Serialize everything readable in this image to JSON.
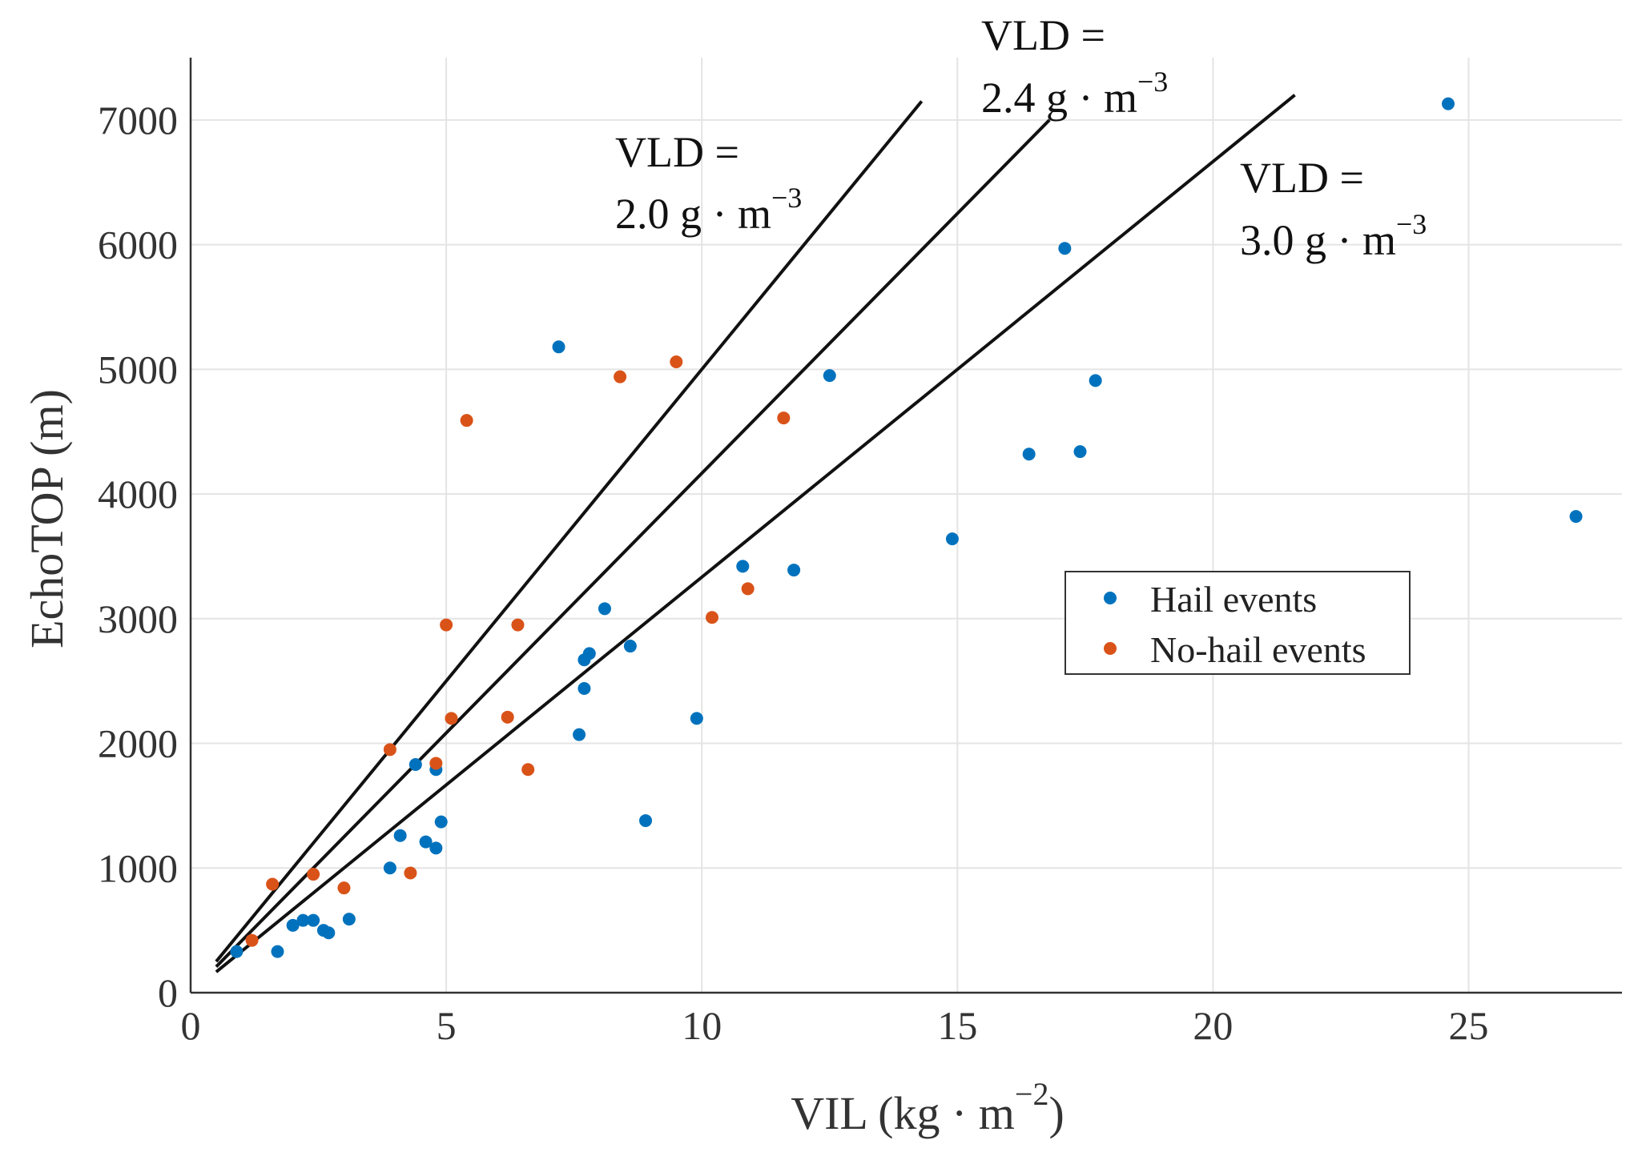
{
  "chart_data": {
    "type": "scatter",
    "xlabel": "VIL (kg · m",
    "xlabel_exponent": "−2",
    "xlabel_close": ")",
    "ylabel": "EchoTOP (m)",
    "xlim": [
      0,
      28
    ],
    "ylim": [
      0,
      7500
    ],
    "grid": true,
    "legend_position": "center-right",
    "x_ticks": [
      0,
      5,
      10,
      15,
      20,
      25
    ],
    "y_ticks": [
      0,
      1000,
      2000,
      3000,
      4000,
      5000,
      6000,
      7000
    ],
    "colors": {
      "hail": "#0072bd",
      "no_hail": "#d95319",
      "lines": "#111111"
    },
    "series": [
      {
        "name": "Hail events",
        "color": "#0072bd",
        "points": [
          [
            0.9,
            330
          ],
          [
            1.7,
            330
          ],
          [
            2.0,
            540
          ],
          [
            2.2,
            580
          ],
          [
            2.4,
            580
          ],
          [
            2.6,
            500
          ],
          [
            2.7,
            480
          ],
          [
            3.1,
            590
          ],
          [
            3.9,
            1000
          ],
          [
            4.1,
            1260
          ],
          [
            4.4,
            1830
          ],
          [
            4.6,
            1210
          ],
          [
            4.8,
            1160
          ],
          [
            4.8,
            1790
          ],
          [
            4.9,
            1370
          ],
          [
            7.2,
            5180
          ],
          [
            7.6,
            2070
          ],
          [
            7.7,
            2440
          ],
          [
            7.7,
            2670
          ],
          [
            7.8,
            2720
          ],
          [
            8.1,
            3080
          ],
          [
            8.6,
            2780
          ],
          [
            8.9,
            1380
          ],
          [
            9.9,
            2200
          ],
          [
            10.8,
            3420
          ],
          [
            11.8,
            3390
          ],
          [
            12.5,
            4950
          ],
          [
            14.9,
            3640
          ],
          [
            16.4,
            4320
          ],
          [
            17.1,
            5970
          ],
          [
            17.4,
            4340
          ],
          [
            17.7,
            4910
          ],
          [
            24.6,
            7130
          ],
          [
            27.1,
            3820
          ]
        ]
      },
      {
        "name": "No-hail events",
        "color": "#d95319",
        "points": [
          [
            1.2,
            420
          ],
          [
            1.6,
            870
          ],
          [
            2.4,
            950
          ],
          [
            3.0,
            840
          ],
          [
            3.9,
            1950
          ],
          [
            4.3,
            960
          ],
          [
            4.8,
            1840
          ],
          [
            5.0,
            2950
          ],
          [
            5.1,
            2200
          ],
          [
            5.4,
            4590
          ],
          [
            6.2,
            2210
          ],
          [
            6.4,
            2950
          ],
          [
            6.6,
            1790
          ],
          [
            8.4,
            4940
          ],
          [
            9.5,
            5060
          ],
          [
            10.2,
            3010
          ],
          [
            10.9,
            3240
          ],
          [
            11.6,
            4610
          ]
        ]
      }
    ],
    "reference_lines": [
      {
        "vld": 2.0,
        "x_range": [
          0.5,
          14.3
        ]
      },
      {
        "vld": 2.4,
        "x_range": [
          0.5,
          16.8
        ]
      },
      {
        "vld": 3.0,
        "x_range": [
          0.5,
          21.6
        ]
      }
    ],
    "annotations": [
      {
        "line1": "VLD =",
        "line2": "2.0 g · m",
        "exponent": "−3"
      },
      {
        "line1": "VLD =",
        "line2": "2.4 g · m",
        "exponent": "−3"
      },
      {
        "line1": "VLD =",
        "line2": "3.0 g · m",
        "exponent": "−3"
      }
    ]
  }
}
